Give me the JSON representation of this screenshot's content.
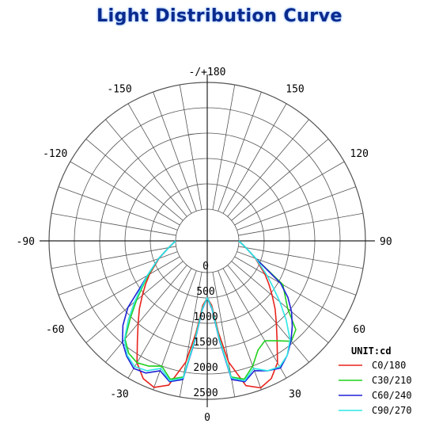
{
  "title": "Light Distribution Curve",
  "chart_data": {
    "type": "polar",
    "title": "Light Distribution Curve",
    "unit": "UNIT:cd",
    "radial_ticks": [
      0,
      500,
      1000,
      1500,
      2000,
      2500
    ],
    "radial_max": 2500,
    "angle_labels": [
      {
        "text": "-/+180",
        "angle": 180
      },
      {
        "text": "-150",
        "angle": -150
      },
      {
        "text": "150",
        "angle": 150
      },
      {
        "text": "-120",
        "angle": -120
      },
      {
        "text": "120",
        "angle": 120
      },
      {
        "text": "-90",
        "angle": -90
      },
      {
        "text": "90",
        "angle": 90
      },
      {
        "text": "-60",
        "angle": -60
      },
      {
        "text": "60",
        "angle": 60
      },
      {
        "text": "-30",
        "angle": -30
      },
      {
        "text": "30",
        "angle": 30
      },
      {
        "text": "0",
        "angle": 0
      }
    ],
    "series": [
      {
        "name": "C0/180",
        "color": "#e8231c",
        "angles": [
          -90,
          -80,
          -70,
          -60,
          -55,
          -50,
          -45,
          -40,
          -35,
          -30,
          -25,
          -20,
          -15,
          -10,
          -7,
          -4,
          0,
          4,
          7,
          10,
          15,
          20,
          25,
          30,
          35,
          40,
          45,
          50,
          55,
          60,
          70,
          80,
          90
        ],
        "values": [
          0,
          150,
          390,
          690,
          860,
          1050,
          1270,
          1500,
          1780,
          2150,
          2370,
          2450,
          2320,
          1800,
          1200,
          650,
          500,
          650,
          1200,
          1800,
          2330,
          2460,
          2370,
          2150,
          1780,
          1500,
          1270,
          1050,
          860,
          690,
          390,
          150,
          0
        ]
      },
      {
        "name": "C30/210",
        "color": "#22d11f",
        "angles": [
          -90,
          -80,
          -70,
          -60,
          -55,
          -50,
          -45,
          -40,
          -35,
          -30,
          -25,
          -20,
          -15,
          -10,
          -7,
          -4,
          0,
          4,
          7,
          10,
          15,
          20,
          25,
          30,
          35,
          40,
          45,
          50,
          55,
          60,
          70,
          80,
          90
        ],
        "values": [
          0,
          150,
          400,
          720,
          930,
          1200,
          1520,
          1900,
          2080,
          2150,
          2100,
          2000,
          2200,
          2100,
          1300,
          700,
          500,
          700,
          1300,
          2100,
          2200,
          2000,
          1750,
          1650,
          1780,
          1960,
          1850,
          1450,
          1250,
          1100,
          400,
          150,
          0
        ]
      },
      {
        "name": "C60/240",
        "color": "#1f22d6",
        "angles": [
          -90,
          -80,
          -70,
          -60,
          -55,
          -50,
          -45,
          -40,
          -35,
          -30,
          -25,
          -20,
          -15,
          -10,
          -7,
          -4,
          0,
          4,
          7,
          10,
          15,
          20,
          25,
          30,
          35,
          40,
          45,
          50,
          55,
          60,
          70,
          80,
          90
        ],
        "values": [
          0,
          150,
          400,
          740,
          1000,
          1420,
          1730,
          1980,
          2150,
          2280,
          2250,
          2100,
          2250,
          2150,
          1350,
          720,
          500,
          720,
          1350,
          2150,
          2250,
          2100,
          2200,
          2270,
          2130,
          1950,
          1750,
          1550,
          1320,
          1050,
          400,
          150,
          0
        ]
      },
      {
        "name": "C90/270",
        "color": "#2ee6e6",
        "angles": [
          -90,
          -80,
          -70,
          -60,
          -55,
          -50,
          -45,
          -40,
          -35,
          -30,
          -25,
          -20,
          -15,
          -10,
          -7,
          -4,
          0,
          4,
          7,
          10,
          15,
          20,
          25,
          30,
          35,
          40,
          45,
          50,
          55,
          60,
          70,
          80,
          90
        ],
        "values": [
          0,
          150,
          400,
          740,
          960,
          1250,
          1580,
          1920,
          2130,
          2240,
          2200,
          2050,
          2230,
          2120,
          1320,
          700,
          500,
          700,
          1320,
          2120,
          2230,
          2050,
          2200,
          2240,
          2130,
          1920,
          1580,
          1250,
          960,
          740,
          400,
          150,
          0
        ]
      }
    ]
  }
}
